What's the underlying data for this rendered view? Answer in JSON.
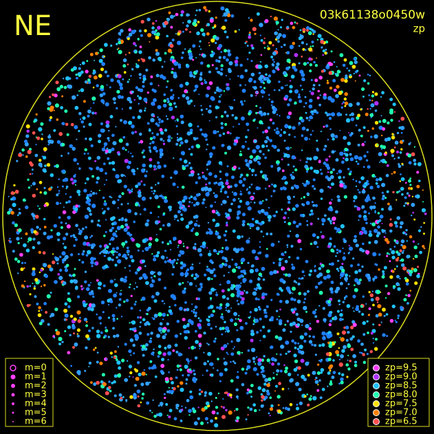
{
  "header": {
    "direction": "NE",
    "image_id": "03k61138o0450w",
    "mode": "zp"
  },
  "magnitude_legend": [
    "m=0",
    "m=1",
    "m=2",
    "m=3",
    "m=4",
    "m=5",
    "m=6"
  ],
  "zp_legend": [
    {
      "label": "zp=9.5",
      "color": "#ff40ff"
    },
    {
      "label": "zp=9.0",
      "color": "#b030ff"
    },
    {
      "label": "zp=8.5",
      "color": "#20c0ff"
    },
    {
      "label": "zp=8.0",
      "color": "#20ffb0"
    },
    {
      "label": "zp=7.5",
      "color": "#ffe000"
    },
    {
      "label": "zp=7.0",
      "color": "#ff8000"
    },
    {
      "label": "zp=6.5",
      "color": "#ff5050"
    }
  ]
}
